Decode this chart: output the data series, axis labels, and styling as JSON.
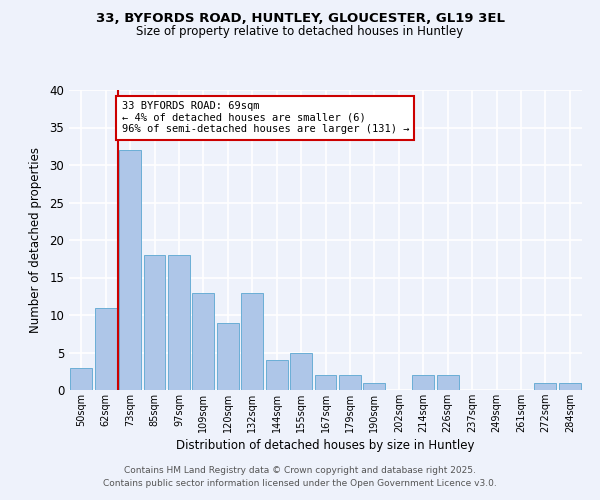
{
  "title1": "33, BYFORDS ROAD, HUNTLEY, GLOUCESTER, GL19 3EL",
  "title2": "Size of property relative to detached houses in Huntley",
  "xlabel": "Distribution of detached houses by size in Huntley",
  "ylabel": "Number of detached properties",
  "categories": [
    "50sqm",
    "62sqm",
    "73sqm",
    "85sqm",
    "97sqm",
    "109sqm",
    "120sqm",
    "132sqm",
    "144sqm",
    "155sqm",
    "167sqm",
    "179sqm",
    "190sqm",
    "202sqm",
    "214sqm",
    "226sqm",
    "237sqm",
    "249sqm",
    "261sqm",
    "272sqm",
    "284sqm"
  ],
  "values": [
    3,
    11,
    32,
    18,
    18,
    13,
    9,
    13,
    4,
    5,
    2,
    2,
    1,
    0,
    2,
    2,
    0,
    0,
    0,
    1,
    1
  ],
  "bar_color": "#aec6e8",
  "bar_edge_color": "#6aaed6",
  "vline_x_index": 1.5,
  "vline_color": "#cc0000",
  "annotation_text": "33 BYFORDS ROAD: 69sqm\n← 4% of detached houses are smaller (6)\n96% of semi-detached houses are larger (131) →",
  "annotation_box_color": "#ffffff",
  "annotation_box_edge": "#cc0000",
  "ylim": [
    0,
    40
  ],
  "yticks": [
    0,
    5,
    10,
    15,
    20,
    25,
    30,
    35,
    40
  ],
  "background_color": "#eef2fb",
  "grid_color": "#ffffff",
  "footer": "Contains HM Land Registry data © Crown copyright and database right 2025.\nContains public sector information licensed under the Open Government Licence v3.0."
}
